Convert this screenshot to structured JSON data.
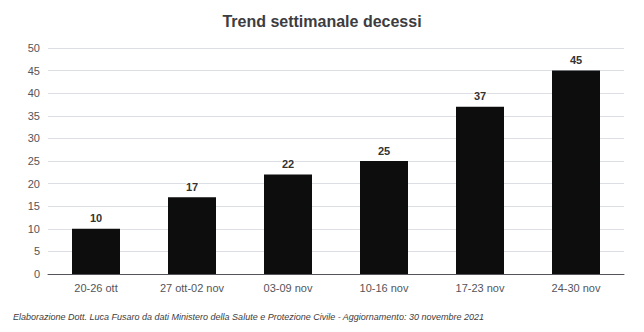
{
  "chart_data": {
    "type": "bar",
    "title": "Trend settimanale decessi",
    "footer": "Elaborazione Dott. Luca Fusaro da dati Ministero della Salute e Protezione Civile - Aggiornamento: 30 novembre 2021",
    "categories": [
      "20-26 ott",
      "27 ott-02 nov",
      "03-09 nov",
      "10-16 nov",
      "17-23 nov",
      "24-30 nov"
    ],
    "values": [
      10,
      17,
      22,
      25,
      37,
      45
    ],
    "color": "#0d0d0d",
    "ylim": [
      0,
      50
    ],
    "yticks": [
      0,
      5,
      10,
      15,
      20,
      25,
      30,
      35,
      40,
      45,
      50
    ],
    "grid": true,
    "data_labels": true
  }
}
